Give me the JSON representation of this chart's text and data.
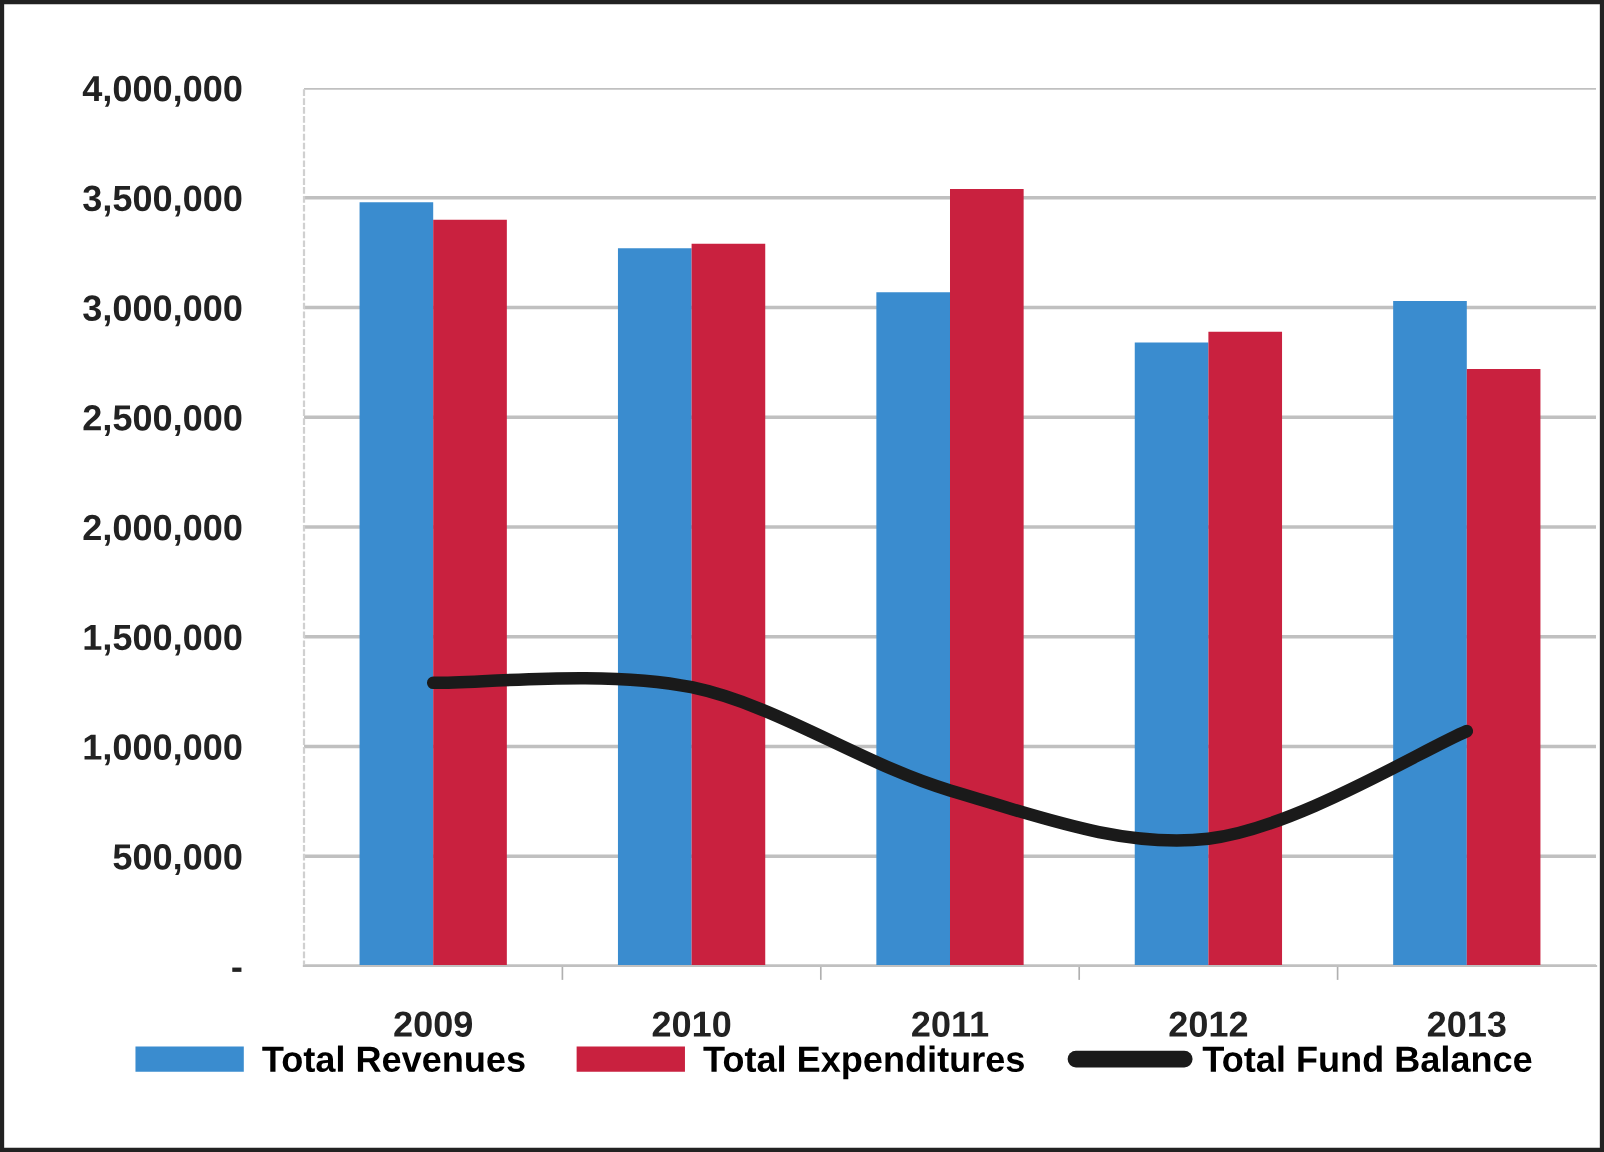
{
  "chart_data": {
    "type": "bar",
    "categories": [
      "2009",
      "2010",
      "2011",
      "2012",
      "2013"
    ],
    "series": [
      {
        "name": "Total Revenues",
        "color": "#3a8ccf",
        "values": [
          3480000,
          3270000,
          3070000,
          2840000,
          3030000
        ]
      },
      {
        "name": "Total Expenditures",
        "color": "#c9213f",
        "values": [
          3400000,
          3290000,
          3540000,
          2890000,
          2720000
        ]
      },
      {
        "name": "Total Fund Balance",
        "type": "line",
        "color": "#1a1a1a",
        "values": [
          1290000,
          1270000,
          800000,
          580000,
          1070000
        ]
      }
    ],
    "ylim": [
      0,
      4000000
    ],
    "yticks": [
      {
        "value": 0,
        "label": "-"
      },
      {
        "value": 500000,
        "label": "500,000"
      },
      {
        "value": 1000000,
        "label": "1,000,000"
      },
      {
        "value": 1500000,
        "label": "1,500,000"
      },
      {
        "value": 2000000,
        "label": "2,000,000"
      },
      {
        "value": 2500000,
        "label": "2,500,000"
      },
      {
        "value": 3000000,
        "label": "3,000,000"
      },
      {
        "value": 3500000,
        "label": "3,500,000"
      },
      {
        "value": 4000000,
        "label": "4,000,000"
      }
    ],
    "grid": "y",
    "legend": "bottom"
  }
}
